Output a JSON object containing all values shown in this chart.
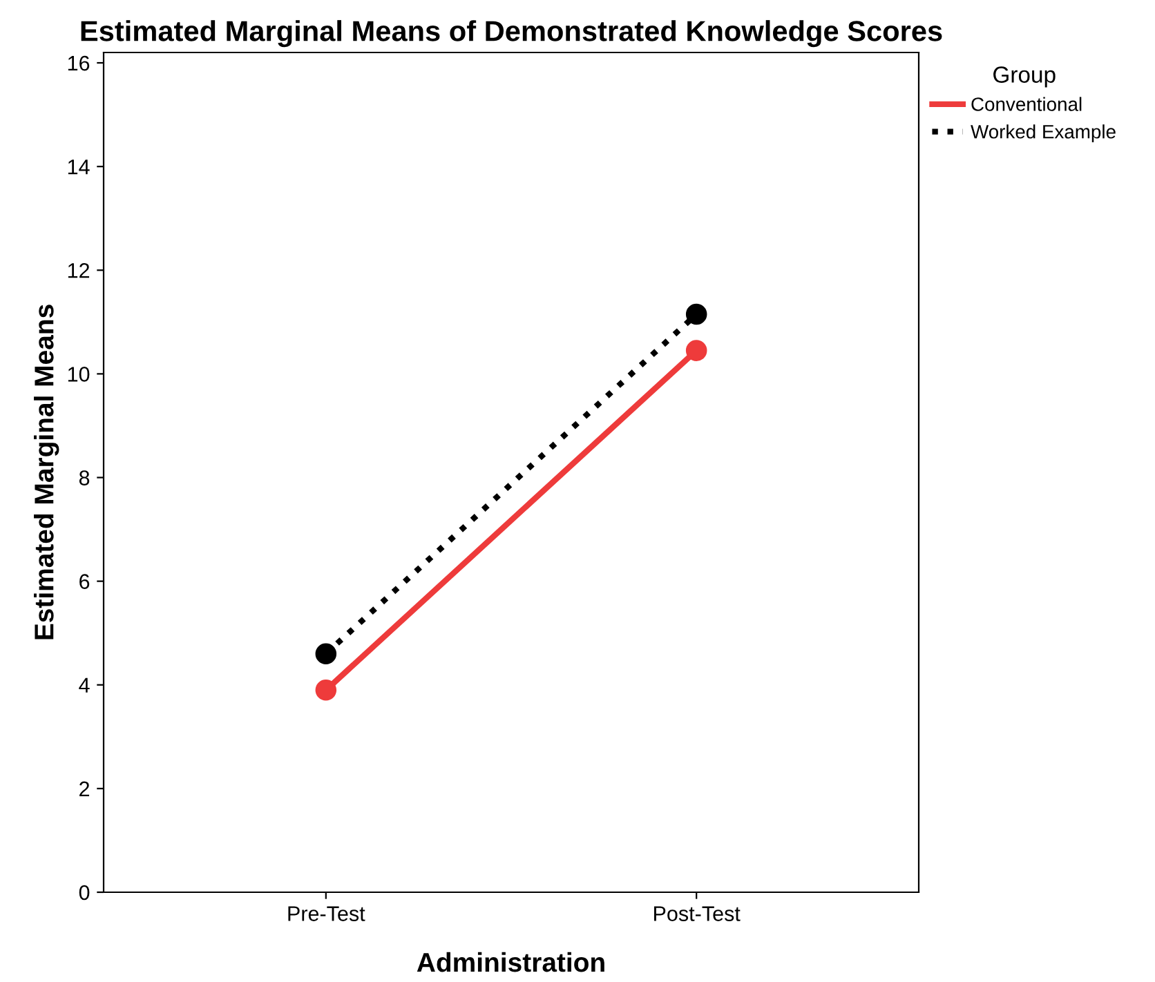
{
  "chart_data": {
    "type": "line",
    "title": "Estimated Marginal Means of Demonstrated Knowledge Scores",
    "xlabel": "Administration",
    "ylabel": "Estimated Marginal Means",
    "legend_title": "Group",
    "categories": [
      "Pre-Test",
      "Post-Test"
    ],
    "series": [
      {
        "name": "Conventional",
        "color": "#ee3b3b",
        "values": [
          3.9,
          10.45
        ],
        "line_style": "solid"
      },
      {
        "name": "Worked Example",
        "color": "#000000",
        "values": [
          4.6,
          11.15
        ],
        "line_style": "dotted"
      }
    ],
    "ylim": [
      0,
      16.2
    ],
    "yticks": [
      0,
      2,
      4,
      6,
      8,
      10,
      12,
      14,
      16
    ],
    "marker": "circle",
    "legend": "top right",
    "grid": false
  }
}
